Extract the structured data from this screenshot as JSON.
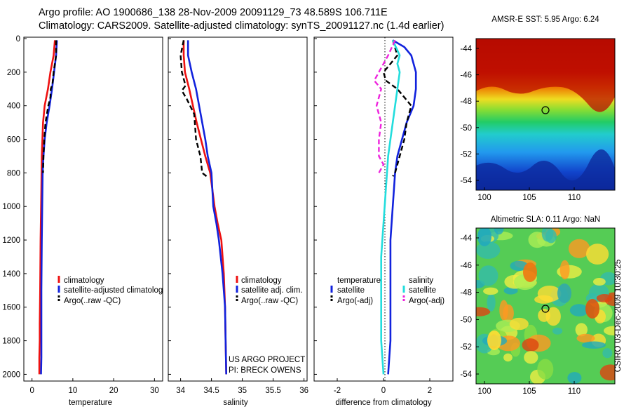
{
  "header": {
    "line1": "Argo profile: AO 1900686_138 28-Nov-2009 20091129_73 48.589S 106.711E",
    "line2": "Climatology: CARS2009. Satellite-adjusted climatology: synTS_20091127.nc (1.4d earlier)"
  },
  "side_label": "CSIRO 03-Dec-2009 10:30:25",
  "colors": {
    "climatology": "#ee1111",
    "satellite": "#1122dd",
    "argo": "#000000",
    "sal_satellite": "#22dddd",
    "sal_argo": "#ee22dd",
    "marker": "#000000"
  },
  "panels": {
    "temperature": {
      "xlabel": "temperature",
      "xticks": [
        "0",
        "10",
        "20",
        "30"
      ],
      "legend": [
        "climatology",
        "satellite-adjusted climatolog",
        "Argo(..raw -QC)"
      ]
    },
    "salinity": {
      "xlabel": "salinity",
      "xticks": [
        "34",
        "34.5",
        "35",
        "35.5",
        "36"
      ],
      "legend": [
        "climatology",
        "satellite adj. clim.",
        "Argo(..raw -QC)"
      ],
      "credit1": "US ARGO PROJECT",
      "credit2": "PI: BRECK OWENS"
    },
    "difference": {
      "xlabel": "difference from climatology",
      "xticks": [
        "-2",
        "0",
        "2"
      ],
      "legend_temp_title": "temperature",
      "legend_temp": [
        "satellite",
        "Argo(-adj)"
      ],
      "legend_sal_title": "salinity",
      "legend_sal": [
        "satellite",
        "Argo(-adj)"
      ]
    },
    "sst_map": {
      "title": "AMSR-E SST: 5.95 Argo: 6.24",
      "yticks": [
        "-44",
        "-46",
        "-48",
        "-50",
        "-52",
        "-54"
      ],
      "xticks": [
        "100",
        "105",
        "110"
      ]
    },
    "sla_map": {
      "title": "Altimetric SLA: 0.11 Argo: NaN",
      "yticks": [
        "-44",
        "-46",
        "-48",
        "-50",
        "-52",
        "-54"
      ],
      "xticks": [
        "100",
        "105",
        "110"
      ]
    }
  },
  "depth_ticks": [
    "0",
    "200",
    "400",
    "600",
    "800",
    "1000",
    "1200",
    "1400",
    "1600",
    "1800",
    "2000"
  ],
  "chart_data": [
    {
      "type": "line",
      "title": "",
      "xlabel": "temperature",
      "ylabel": "depth",
      "xlim": [
        -2,
        32
      ],
      "ylim": [
        2040,
        0
      ],
      "series": [
        {
          "name": "climatology",
          "x": [
            5.6,
            5.3,
            4.5,
            3.9,
            3.1,
            2.7,
            2.4,
            2.3,
            2.1,
            2.0,
            1.9,
            1.9,
            1.8,
            1.8
          ],
          "depth": [
            10,
            100,
            200,
            300,
            400,
            500,
            700,
            900,
            1200,
            1500,
            1700,
            1800,
            1900,
            2000
          ]
        },
        {
          "name": "satellite-adjusted climatolog",
          "x": [
            6.1,
            5.9,
            5.4,
            4.9,
            4.3,
            3.6,
            3.1,
            2.8,
            2.6,
            2.5,
            2.4,
            2.3,
            2.3,
            2.3,
            2.2
          ],
          "depth": [
            10,
            100,
            200,
            300,
            400,
            500,
            600,
            700,
            800,
            1000,
            1200,
            1500,
            1700,
            1900,
            2000
          ]
        },
        {
          "name": "Argo(..raw -QC)",
          "x": [
            5.9,
            5.9,
            5.3,
            5.0,
            4.6,
            4.5,
            4.0,
            3.3,
            3.0,
            2.8,
            2.7
          ],
          "depth": [
            10,
            100,
            200,
            270,
            300,
            350,
            400,
            500,
            600,
            700,
            800
          ]
        }
      ]
    },
    {
      "type": "line",
      "title": "",
      "xlabel": "salinity",
      "ylabel": "depth",
      "xlim": [
        33.8,
        36.05
      ],
      "ylim": [
        2040,
        0
      ],
      "series": [
        {
          "name": "climatology",
          "x": [
            34.05,
            34.05,
            34.07,
            34.14,
            34.2,
            34.26,
            34.33,
            34.4,
            34.48,
            34.55,
            34.6,
            34.66,
            34.7,
            34.72,
            34.73,
            34.74
          ],
          "depth": [
            10,
            100,
            200,
            300,
            400,
            500,
            600,
            700,
            800,
            1000,
            1100,
            1200,
            1400,
            1600,
            1800,
            2000
          ]
        },
        {
          "name": "satellite adj. clim.",
          "x": [
            34.12,
            34.12,
            34.18,
            34.25,
            34.3,
            34.35,
            34.4,
            34.44,
            34.5,
            34.53,
            34.58,
            34.62,
            34.68,
            34.72,
            34.73,
            34.74
          ],
          "depth": [
            10,
            100,
            200,
            300,
            400,
            500,
            600,
            700,
            800,
            1000,
            1100,
            1200,
            1400,
            1600,
            1800,
            2000
          ]
        },
        {
          "name": "Argo(..raw -QC)",
          "x": [
            34.05,
            34.0,
            34.02,
            34.08,
            34.02,
            34.1,
            34.22,
            34.25,
            34.32,
            34.35,
            34.42
          ],
          "depth": [
            10,
            100,
            200,
            280,
            310,
            360,
            450,
            600,
            700,
            800,
            820
          ]
        }
      ]
    },
    {
      "type": "line",
      "title": "",
      "xlabel": "difference from climatology",
      "ylabel": "depth",
      "xlim": [
        -3,
        3
      ],
      "ylim": [
        2040,
        0
      ],
      "series": [
        {
          "name": "temperature satellite",
          "x": [
            0.4,
            0.9,
            1.2,
            1.4,
            1.4,
            1.3,
            1.0,
            0.8,
            0.6,
            0.5,
            0.4,
            0.3,
            0.3,
            0.3,
            0.2
          ],
          "depth": [
            10,
            50,
            100,
            200,
            300,
            400,
            500,
            600,
            700,
            800,
            1000,
            1200,
            1500,
            1800,
            2000
          ]
        },
        {
          "name": "temperature Argo(-adj)",
          "x": [
            0.4,
            0.6,
            0.3,
            0.0,
            0.1,
            0.6,
            0.9,
            1.2,
            1.0,
            0.9,
            0.7,
            0.5,
            0.4
          ],
          "depth": [
            10,
            100,
            150,
            200,
            250,
            300,
            350,
            400,
            500,
            600,
            700,
            800,
            820
          ]
        },
        {
          "name": "salinity satellite",
          "x": [
            0.4,
            0.7,
            0.6,
            0.7,
            0.6,
            0.5,
            0.4,
            0.3,
            0.2,
            0.1,
            0.0,
            -0.1,
            -0.1,
            -0.1,
            0.0
          ],
          "depth": [
            10,
            100,
            150,
            200,
            300,
            400,
            500,
            600,
            700,
            900,
            1100,
            1300,
            1500,
            1800,
            2000
          ]
        },
        {
          "name": "salinity Argo(-adj)",
          "x": [
            0.5,
            0.2,
            -0.2,
            -0.4,
            -0.1,
            -0.3,
            -0.1,
            -0.2,
            -0.2,
            0.0,
            -0.2
          ],
          "depth": [
            10,
            100,
            200,
            250,
            300,
            400,
            500,
            600,
            700,
            750,
            800
          ]
        }
      ]
    }
  ]
}
